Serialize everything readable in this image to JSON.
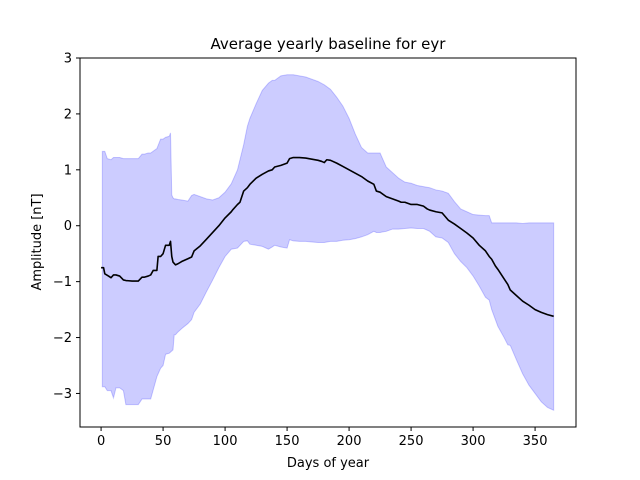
{
  "chart_data": {
    "type": "area",
    "title": "Average yearly baseline for eyr",
    "xlabel": "Days of year",
    "ylabel": "Amplitude [nT]",
    "xlim": [
      -17,
      383
    ],
    "ylim": [
      -3.6,
      3.0
    ],
    "xticks": [
      0,
      50,
      100,
      150,
      200,
      250,
      300,
      350
    ],
    "yticks": [
      -3,
      -2,
      -1,
      0,
      1,
      2,
      3
    ],
    "grid": false,
    "colors": {
      "band": "#0000ff",
      "mean": "#000000"
    },
    "band": {
      "x": [
        1,
        3,
        5,
        8,
        10,
        12,
        15,
        18,
        20,
        25,
        30,
        33,
        35,
        38,
        40,
        45,
        48,
        50,
        52,
        55,
        56,
        57,
        58,
        59,
        60,
        62,
        65,
        70,
        73,
        75,
        80,
        85,
        90,
        95,
        100,
        105,
        110,
        115,
        118,
        120,
        125,
        130,
        135,
        138,
        140,
        145,
        150,
        152,
        155,
        160,
        165,
        170,
        175,
        180,
        185,
        190,
        195,
        200,
        205,
        210,
        215,
        220,
        222,
        225,
        230,
        235,
        240,
        245,
        250,
        255,
        260,
        265,
        270,
        275,
        280,
        285,
        290,
        295,
        300,
        305,
        310,
        313,
        315,
        320,
        325,
        328,
        330,
        335,
        340,
        345,
        350,
        355,
        360,
        365
      ],
      "upper": [
        1.33,
        1.33,
        1.2,
        1.18,
        1.22,
        1.22,
        1.22,
        1.2,
        1.2,
        1.2,
        1.2,
        1.28,
        1.28,
        1.3,
        1.3,
        1.38,
        1.55,
        1.55,
        1.58,
        1.6,
        1.66,
        0.55,
        0.5,
        0.48,
        0.48,
        0.47,
        0.46,
        0.44,
        0.54,
        0.56,
        0.52,
        0.48,
        0.46,
        0.5,
        0.6,
        0.75,
        1.0,
        1.45,
        1.78,
        1.92,
        2.18,
        2.42,
        2.55,
        2.6,
        2.6,
        2.68,
        2.7,
        2.7,
        2.7,
        2.68,
        2.66,
        2.62,
        2.58,
        2.52,
        2.44,
        2.3,
        2.14,
        1.92,
        1.64,
        1.4,
        1.3,
        1.3,
        1.3,
        1.3,
        1.05,
        0.95,
        0.85,
        0.78,
        0.76,
        0.72,
        0.7,
        0.68,
        0.64,
        0.62,
        0.58,
        0.43,
        0.3,
        0.25,
        0.2,
        0.19,
        0.18,
        0.18,
        0.05,
        0.05,
        0.05,
        0.05,
        0.05,
        0.05,
        0.04,
        0.05,
        0.05,
        0.05,
        0.05,
        0.05
      ],
      "lower": [
        -2.88,
        -2.88,
        -2.95,
        -2.95,
        -3.08,
        -2.9,
        -2.9,
        -2.95,
        -3.2,
        -3.2,
        -3.2,
        -3.1,
        -3.1,
        -3.1,
        -3.1,
        -2.7,
        -2.55,
        -2.5,
        -2.3,
        -2.28,
        -2.26,
        -2.24,
        -2.22,
        -1.95,
        -1.95,
        -1.9,
        -1.84,
        -1.75,
        -1.68,
        -1.55,
        -1.4,
        -1.18,
        -0.97,
        -0.75,
        -0.55,
        -0.42,
        -0.4,
        -0.28,
        -0.27,
        -0.33,
        -0.35,
        -0.37,
        -0.42,
        -0.38,
        -0.35,
        -0.38,
        -0.4,
        -0.25,
        -0.27,
        -0.28,
        -0.28,
        -0.29,
        -0.3,
        -0.3,
        -0.28,
        -0.28,
        -0.26,
        -0.25,
        -0.23,
        -0.2,
        -0.16,
        -0.1,
        -0.12,
        -0.12,
        -0.1,
        -0.06,
        -0.06,
        -0.05,
        -0.04,
        -0.05,
        -0.05,
        -0.1,
        -0.2,
        -0.22,
        -0.3,
        -0.5,
        -0.64,
        -0.75,
        -0.9,
        -1.08,
        -1.28,
        -1.33,
        -1.5,
        -1.8,
        -2.0,
        -2.13,
        -2.14,
        -2.4,
        -2.65,
        -2.85,
        -3.0,
        -3.15,
        -3.25,
        -3.3
      ]
    },
    "mean": {
      "x": [
        0,
        2,
        3,
        6,
        8,
        10,
        12,
        15,
        18,
        20,
        25,
        30,
        33,
        35,
        38,
        40,
        42,
        45,
        46,
        48,
        50,
        52,
        53,
        55,
        56,
        57,
        58,
        60,
        62,
        65,
        70,
        73,
        75,
        80,
        85,
        90,
        95,
        100,
        105,
        106,
        110,
        112,
        115,
        118,
        120,
        125,
        130,
        135,
        138,
        140,
        145,
        150,
        152,
        155,
        160,
        165,
        170,
        175,
        178,
        180,
        182,
        185,
        190,
        195,
        200,
        205,
        210,
        215,
        220,
        222,
        225,
        230,
        235,
        240,
        242,
        245,
        250,
        255,
        260,
        263,
        265,
        270,
        275,
        280,
        285,
        290,
        295,
        300,
        305,
        310,
        313,
        315,
        318,
        320,
        325,
        328,
        330,
        335,
        340,
        345,
        350,
        355,
        360,
        365
      ],
      "y": [
        -0.75,
        -0.75,
        -0.86,
        -0.9,
        -0.93,
        -0.88,
        -0.88,
        -0.9,
        -0.97,
        -0.98,
        -0.99,
        -0.99,
        -0.92,
        -0.92,
        -0.9,
        -0.88,
        -0.8,
        -0.8,
        -0.55,
        -0.55,
        -0.5,
        -0.35,
        -0.35,
        -0.35,
        -0.28,
        -0.55,
        -0.65,
        -0.7,
        -0.68,
        -0.64,
        -0.59,
        -0.56,
        -0.45,
        -0.36,
        -0.24,
        -0.12,
        0.0,
        0.14,
        0.25,
        0.28,
        0.38,
        0.42,
        0.62,
        0.68,
        0.74,
        0.85,
        0.92,
        0.98,
        1.0,
        1.05,
        1.08,
        1.12,
        1.2,
        1.22,
        1.22,
        1.21,
        1.19,
        1.17,
        1.15,
        1.13,
        1.18,
        1.17,
        1.12,
        1.06,
        1.0,
        0.94,
        0.88,
        0.8,
        0.74,
        0.62,
        0.6,
        0.52,
        0.48,
        0.44,
        0.42,
        0.42,
        0.38,
        0.38,
        0.35,
        0.3,
        0.28,
        0.25,
        0.23,
        0.1,
        0.03,
        -0.05,
        -0.13,
        -0.22,
        -0.35,
        -0.45,
        -0.55,
        -0.6,
        -0.72,
        -0.78,
        -0.95,
        -1.05,
        -1.15,
        -1.25,
        -1.35,
        -1.42,
        -1.5,
        -1.55,
        -1.59,
        -1.62
      ]
    }
  }
}
